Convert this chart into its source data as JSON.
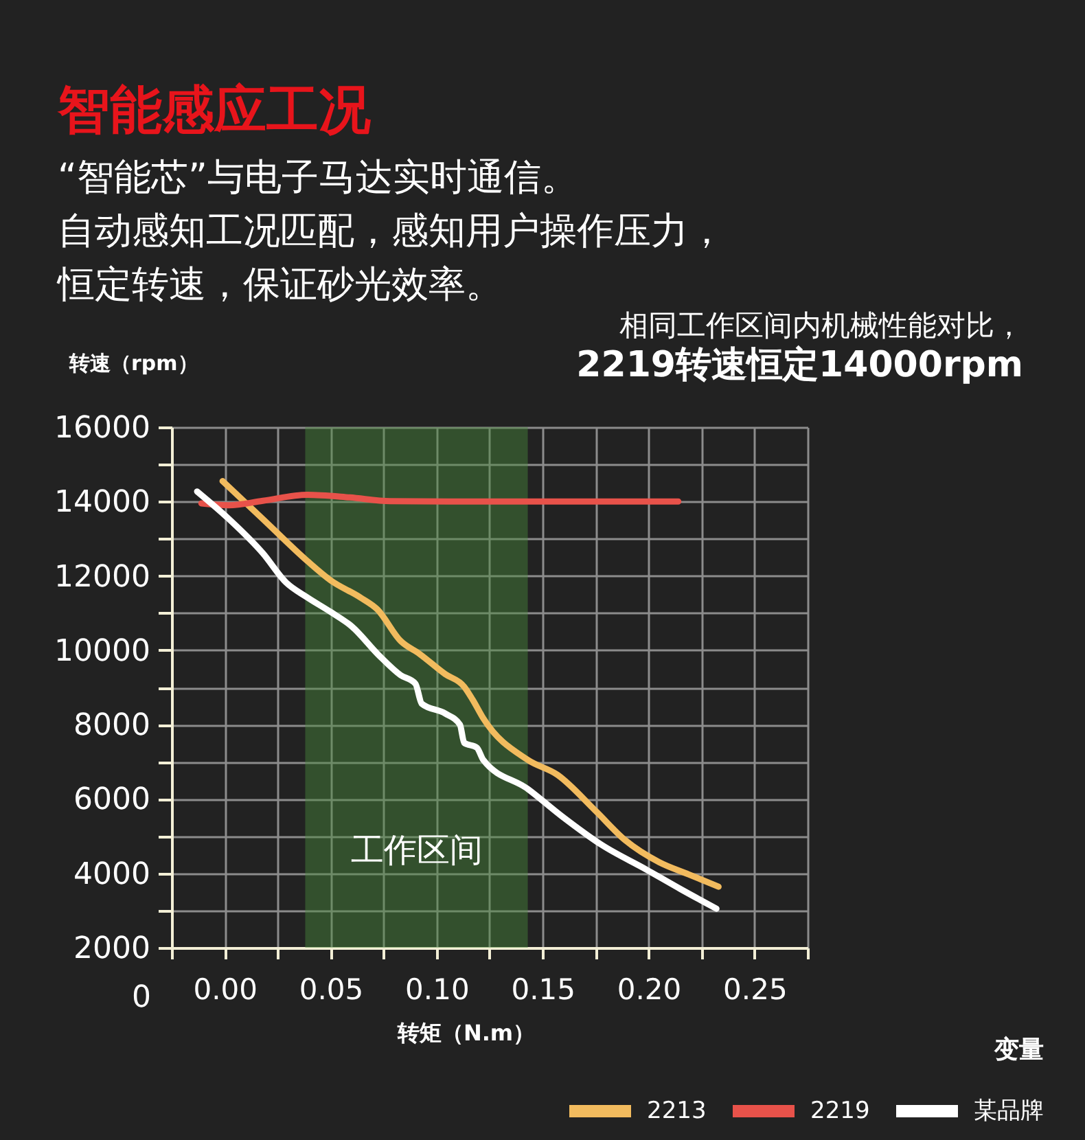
{
  "chart_data": {
    "type": "line",
    "title": "智能感应工况",
    "subtitle": "“智能芯”与电子马达实时通信。自动感知工况匹配，感知用户操作压力，恒定转速，保证砂光效率。",
    "xlabel": "转矩（N.m）",
    "ylabel": "转速（rpm）",
    "legend_title": "变量",
    "annotations": [
      "0",
      "相同工作区间内机械性能对比，",
      "2219转速恒定14000rpm"
    ],
    "xlim": [
      -0.025,
      0.275
    ],
    "xticks": [
      {
        "value": -0.025,
        "label": null
      },
      {
        "value": 0,
        "label": "0.00"
      },
      {
        "value": 0.025,
        "label": null
      },
      {
        "value": 0.05,
        "label": "0.05"
      },
      {
        "value": 0.075,
        "label": null
      },
      {
        "value": 0.1,
        "label": "0.10"
      },
      {
        "value": 0.125,
        "label": null
      },
      {
        "value": 0.15,
        "label": "0.15"
      },
      {
        "value": 0.175,
        "label": null
      },
      {
        "value": 0.2,
        "label": "0.20"
      },
      {
        "value": 0.225,
        "label": null
      },
      {
        "value": 0.25,
        "label": "0.25"
      },
      {
        "value": 0.275,
        "label": null
      }
    ],
    "ylim": [
      2000,
      16000
    ],
    "yticks": [
      2000,
      {
        "value": 3000,
        "label": null
      },
      4000,
      {
        "value": 5000,
        "label": null
      },
      6000,
      {
        "value": 7000,
        "label": null
      },
      8000,
      {
        "value": 9000,
        "label": null
      },
      10000,
      {
        "value": 11000,
        "label": null
      },
      12000,
      {
        "value": 13000,
        "label": null
      },
      14000,
      {
        "value": 15000,
        "label": null
      },
      16000
    ],
    "grid": true,
    "legend": "bottom right",
    "line_style": "solid",
    "bands": [
      {
        "axis": "x",
        "from": 0.038,
        "to": 0.143,
        "label": "工作区间",
        "color": "#4a8a3c"
      }
    ],
    "series": [
      {
        "name": "2213",
        "color": "#f2bb5e",
        "x": [
          -0.001,
          0.018,
          0.039,
          0.05,
          0.064,
          0.072,
          0.083,
          0.092,
          0.104,
          0.113,
          0.117,
          0.122,
          0.143,
          0.157,
          0.175,
          0.189,
          0.205,
          0.219,
          0.233
        ],
        "values": [
          14550,
          13530,
          12400,
          11880,
          11420,
          11100,
          10250,
          9900,
          9360,
          9020,
          8670,
          8170,
          7050,
          6650,
          5680,
          4890,
          4300,
          3970,
          3640
        ]
      },
      {
        "name": "2219",
        "color": "#e8524a",
        "x": [
          -0.011,
          0.002,
          0.018,
          0.039,
          0.059,
          0.078,
          0.122,
          0.214
        ],
        "values": [
          13950,
          13900,
          14020,
          14180,
          14110,
          14010,
          14000,
          14000
        ]
      },
      {
        "name": "某品牌",
        "color": "#ffffff",
        "x": [
          -0.013,
          0.002,
          0.018,
          0.029,
          0.039,
          0.05,
          0.06,
          0.073,
          0.083,
          0.09,
          0.093,
          0.104,
          0.111,
          0.113,
          0.119,
          0.122,
          0.143,
          0.159,
          0.178,
          0.199,
          0.215,
          0.232
        ],
        "values": [
          14270,
          13530,
          12610,
          11820,
          11420,
          11030,
          10640,
          9850,
          9330,
          9100,
          8560,
          8300,
          8000,
          7510,
          7380,
          7050,
          6270,
          5540,
          4760,
          4100,
          3580,
          3050
        ]
      }
    ]
  }
}
